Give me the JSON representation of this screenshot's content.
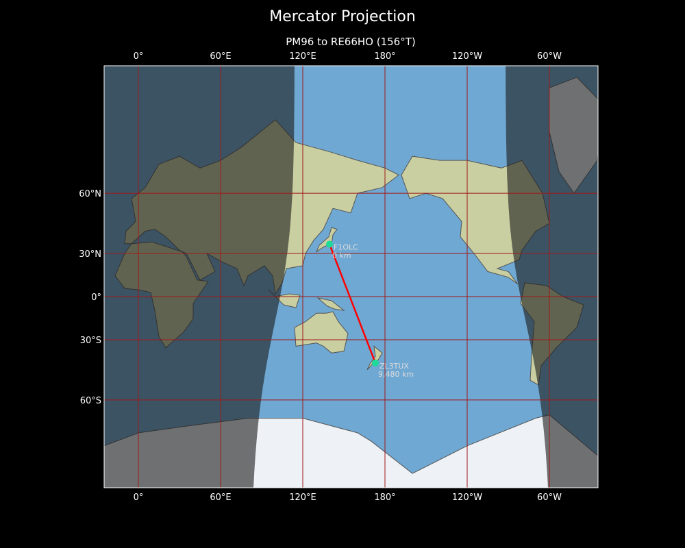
{
  "title": "Mercator Projection",
  "subtitle": "PM96 to RE66HO (156°T)",
  "map": {
    "projection": "Mercator",
    "lon_range": [
      -25,
      335.5
    ],
    "lat_range": [
      -80,
      87
    ],
    "top_ticks": [
      "0°",
      "60°E",
      "120°E",
      "180°",
      "120°W",
      "60°W"
    ],
    "bottom_ticks": [
      "0°",
      "60°E",
      "120°E",
      "180°",
      "120°W",
      "60°W"
    ],
    "tick_lons": [
      0,
      60,
      120,
      180,
      240,
      300
    ],
    "lat_ticks": [
      "60°N",
      "30°N",
      "0°",
      "30°S",
      "60°S"
    ],
    "tick_lats": [
      60,
      30,
      0,
      -30,
      -60
    ],
    "colors": {
      "ocean": "#6fa8d2",
      "land": "#c9cfa0",
      "ice": "#eef1f5",
      "grid": "#a01818",
      "path": "#ff0000",
      "marker": "#1dd99a",
      "night": "#1a1a1a"
    },
    "stations": [
      {
        "call": "F1OLC",
        "dist": "0 km",
        "lon": 139.5,
        "lat": 35.7
      },
      {
        "call": "ZL3TUX",
        "dist": "9,480 km",
        "lon": 173,
        "lat": -43.5
      }
    ]
  }
}
